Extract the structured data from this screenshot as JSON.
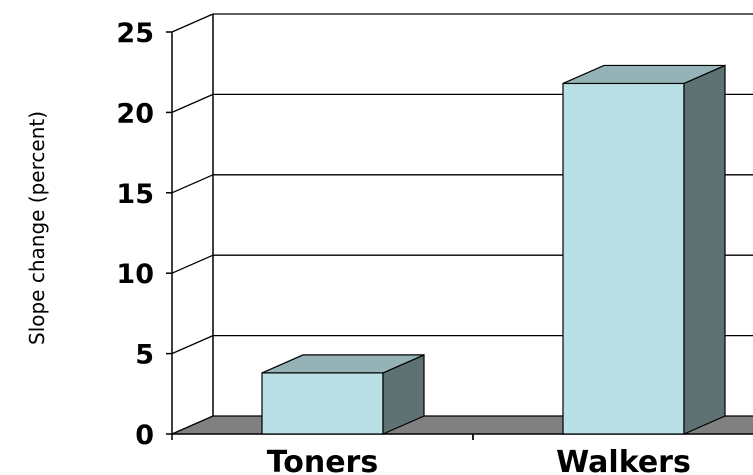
{
  "chart_data": {
    "type": "bar",
    "categories": [
      "Toners",
      "Walkers"
    ],
    "values": [
      3.8,
      21.8
    ],
    "title": "",
    "xlabel": "",
    "ylabel": "Slope change (percent)",
    "ylim": [
      0,
      25
    ],
    "yticks": [
      0,
      5,
      10,
      15,
      20,
      25
    ],
    "grid": true,
    "legend": "none",
    "style": "3d-column"
  },
  "colors": {
    "bar_front": "#b9e0e4",
    "bar_top": "#95b2b6",
    "bar_side": "#5f7273",
    "floor": "#808080",
    "grid": "#000000"
  }
}
